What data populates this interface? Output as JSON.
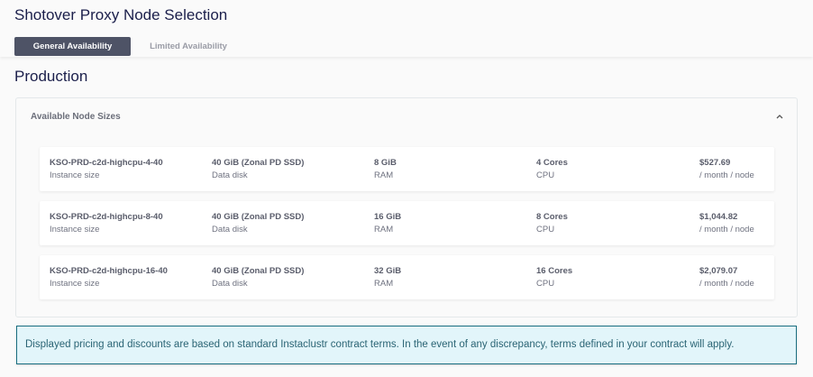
{
  "page": {
    "title": "Shotover Proxy Node Selection"
  },
  "tabs": [
    {
      "label": "General Availability",
      "active": true
    },
    {
      "label": "Limited Availability",
      "active": false
    }
  ],
  "section": {
    "title": "Production"
  },
  "panel": {
    "title": "Available Node Sizes",
    "collapse_icon": "chevron-up-icon",
    "rows": [
      {
        "instance": "KSO-PRD-c2d-highcpu-4-40",
        "instance_label": "Instance size",
        "disk": "40 GiB (Zonal PD SSD)",
        "disk_label": "Data disk",
        "ram": "8 GiB",
        "ram_label": "RAM",
        "cpu": "4 Cores",
        "cpu_label": "CPU",
        "price": "$527.69",
        "price_label": "/ month / node"
      },
      {
        "instance": "KSO-PRD-c2d-highcpu-8-40",
        "instance_label": "Instance size",
        "disk": "40 GiB (Zonal PD SSD)",
        "disk_label": "Data disk",
        "ram": "16 GiB",
        "ram_label": "RAM",
        "cpu": "8 Cores",
        "cpu_label": "CPU",
        "price": "$1,044.82",
        "price_label": "/ month / node"
      },
      {
        "instance": "KSO-PRD-c2d-highcpu-16-40",
        "instance_label": "Instance size",
        "disk": "40 GiB (Zonal PD SSD)",
        "disk_label": "Data disk",
        "ram": "32 GiB",
        "ram_label": "RAM",
        "cpu": "16 Cores",
        "cpu_label": "CPU",
        "price": "$2,079.07",
        "price_label": "/ month / node"
      }
    ]
  },
  "notice": {
    "text": "Displayed pricing and discounts are based on standard Instaclustr contract terms. In the event of any discrepancy, terms defined in your contract will apply."
  },
  "colors": {
    "title": "#1b1f4b",
    "active_tab": "#4e5366",
    "notice_border": "#1a6e80",
    "notice_bg": "#e2f5fa"
  }
}
